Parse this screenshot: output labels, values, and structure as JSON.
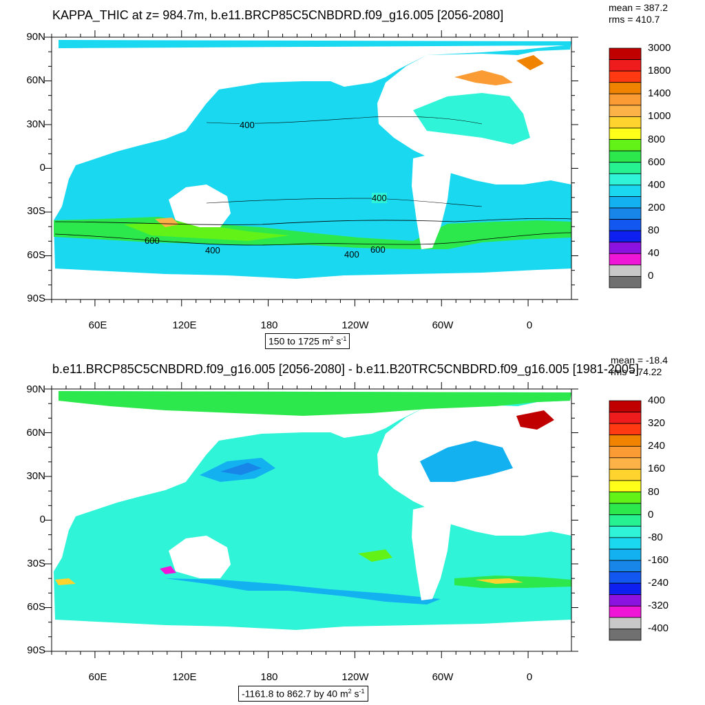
{
  "panels": [
    {
      "title": "KAPPA_THIC at z= 984.7m, b.e11.BRCP85C5CNBDRD.f09_g16.005 [2056-2080]",
      "mean": "mean = 387.2",
      "rms": "rms = 410.7",
      "range_prefix": "150 to 1725 m",
      "range_suffix": " s",
      "colorbar_labels": [
        "3000",
        "1800",
        "1400",
        "1000",
        "800",
        "600",
        "400",
        "200",
        "80",
        "40",
        "0"
      ],
      "colorbar_colors": [
        "#c00000",
        "#ee1c1c",
        "#ff3a12",
        "#f08400",
        "#fb9b34",
        "#fcb246",
        "#ffd32e",
        "#ffff1a",
        "#62f218",
        "#2de84c",
        "#27f292",
        "#2ff4d8",
        "#1ad8f0",
        "#13b1f0",
        "#1786e8",
        "#1257f0",
        "#0d20f0",
        "#8c12e0",
        "#ef16d8",
        "#c8c8c8",
        "#707070"
      ],
      "contour_labels": [
        "400",
        "400",
        "600",
        "400",
        "400",
        "600"
      ]
    },
    {
      "title": "b.e11.BRCP85C5CNBDRD.f09_g16.005 [2056-2080] - b.e11.B20TRC5CNBDRD.f09_g16.005 [1981-2005]",
      "mean": "mean = -18.4",
      "rms": "rms = 74.22",
      "range_prefix": "-1161.8 to 862.7 by 40 m",
      "range_suffix": " s",
      "colorbar_labels": [
        "400",
        "320",
        "240",
        "160",
        "80",
        "0",
        "-80",
        "-160",
        "-240",
        "-320",
        "-400"
      ],
      "colorbar_colors": [
        "#c00000",
        "#ee1c1c",
        "#ff3a12",
        "#f08400",
        "#fb9b34",
        "#fcb246",
        "#ffd32e",
        "#ffff1a",
        "#62f218",
        "#2de84c",
        "#27f292",
        "#2ff4d8",
        "#1ad8f0",
        "#13b1f0",
        "#1786e8",
        "#1257f0",
        "#0d20f0",
        "#8c12e0",
        "#ef16d8",
        "#c8c8c8",
        "#707070"
      ]
    }
  ],
  "axes": {
    "lat_labels": [
      "90N",
      "60N",
      "30N",
      "0",
      "30S",
      "60S",
      "90S"
    ],
    "lon_labels": [
      "60E",
      "120E",
      "180",
      "120W",
      "60W",
      "0"
    ]
  },
  "colors": {
    "ocean_top": "#2ff4d8",
    "ocean_top_tropics": "#1ad8f0",
    "southern_band": "#2de84c",
    "ocean_bottom": "#2ff4d8",
    "arctic_bottom": "#2de84c",
    "land": "#ffffff"
  },
  "exponent": {
    "squared": "2",
    "inverse": "-1"
  }
}
